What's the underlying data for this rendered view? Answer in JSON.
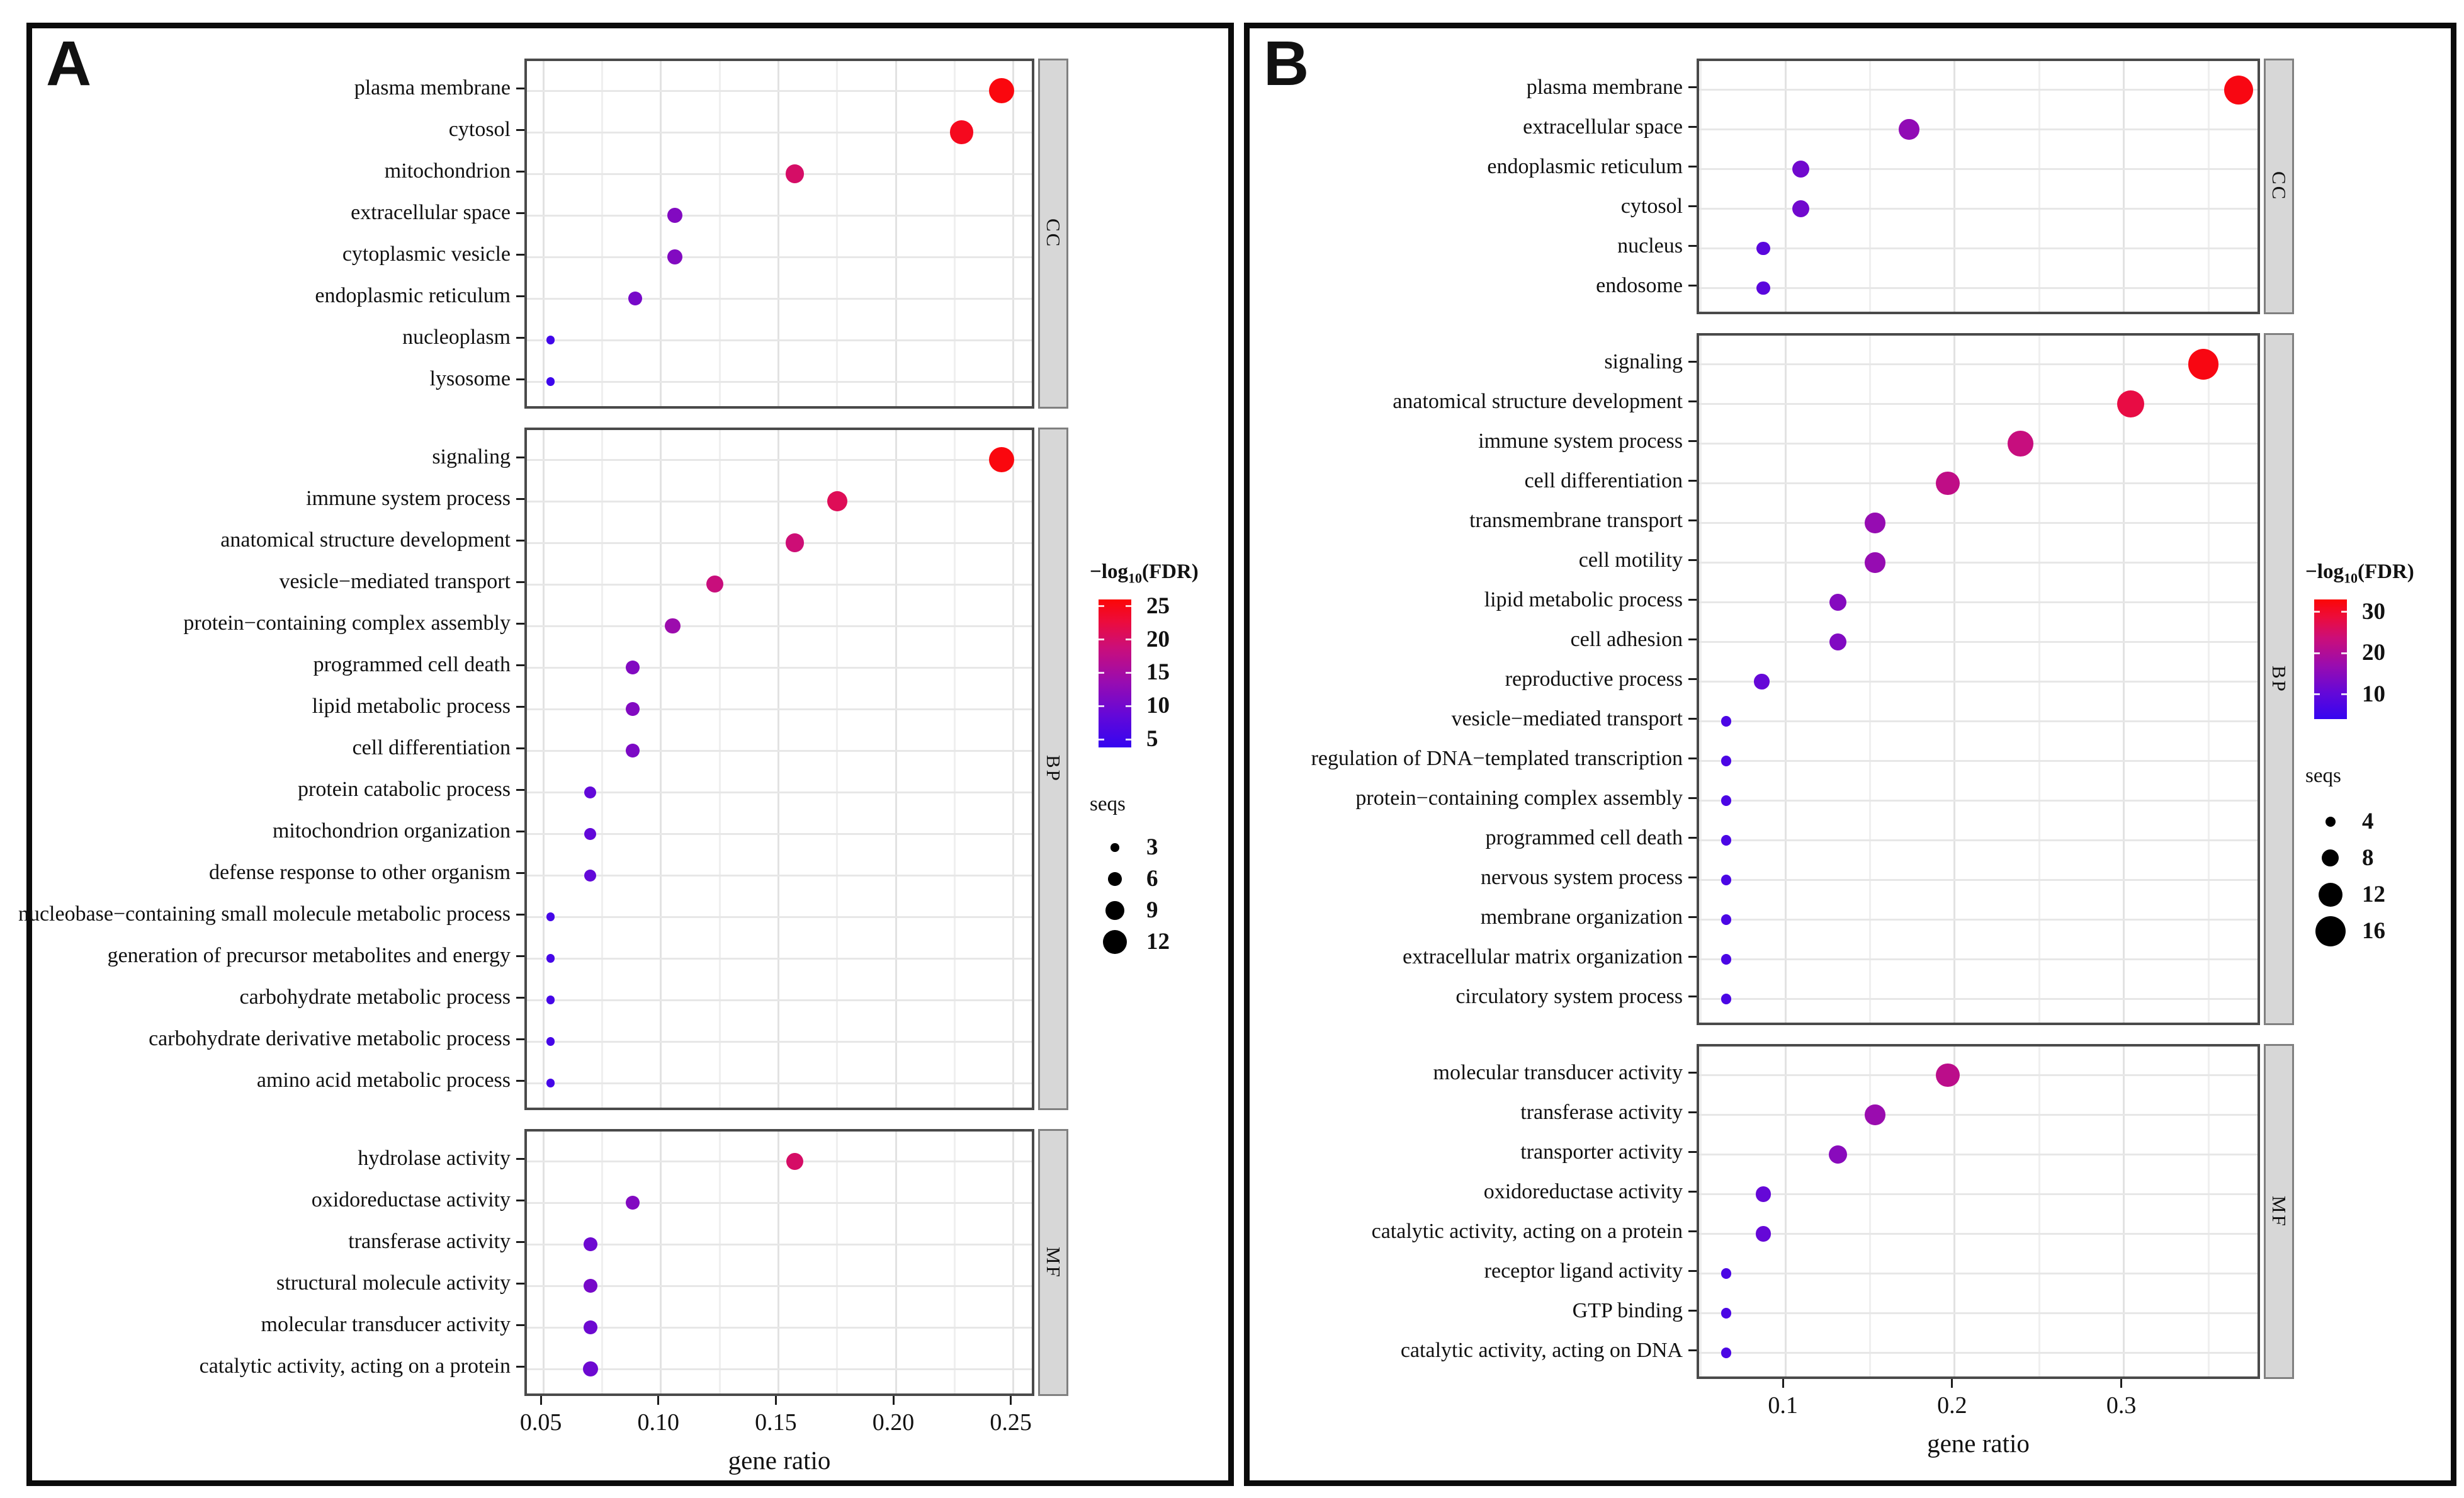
{
  "style": {
    "background": "#ffffff",
    "outer_border": "#0b0b0b",
    "panel_border": "#4a4a4a",
    "grid_major": "#e2e2e2",
    "grid_minor": "#efefef",
    "grid_row": "#e7e7e7",
    "tick_color": "#1c1c1c",
    "text_color": "#111111",
    "strip_bg": "#d7d7d7",
    "strip_border": "#808080",
    "legend_dot_color": "#000000",
    "gradient_stops": [
      [
        0.0,
        "#3505f0"
      ],
      [
        0.22,
        "#6408d8"
      ],
      [
        0.45,
        "#9a0caf"
      ],
      [
        0.68,
        "#cc0e78"
      ],
      [
        0.85,
        "#ec0c3c"
      ],
      [
        1.0,
        "#fc0606"
      ]
    ]
  },
  "chart_data": [
    {
      "type": "scatter",
      "panel_label": "A",
      "xlabel": "gene ratio",
      "x_domain": [
        0.043,
        0.26
      ],
      "x_major_ticks": [
        0.05,
        0.1,
        0.15,
        0.2,
        0.25
      ],
      "x_tick_labels": [
        "0.05",
        "0.10",
        "0.15",
        "0.20",
        "0.25"
      ],
      "x_minor_ticks": [
        0.075,
        0.125,
        0.175,
        0.225
      ],
      "color_domain": [
        3.8,
        26
      ],
      "legend": {
        "color_title": {
          "prefix": "−log",
          "sub": "10",
          "suffix": "(FDR)"
        },
        "color_ticks": [
          25,
          20,
          15,
          10,
          5
        ],
        "size_title": "seqs",
        "size_ticks": [
          3,
          6,
          9,
          12
        ]
      },
      "facets": [
        {
          "label": "CC",
          "rows": [
            {
              "term": "plasma membrane",
              "gene_ratio": 0.245,
              "fdr": 25.5,
              "seqs": 13
            },
            {
              "term": "cytosol",
              "gene_ratio": 0.228,
              "fdr": 24.5,
              "seqs": 12
            },
            {
              "term": "mitochondrion",
              "gene_ratio": 0.157,
              "fdr": 20,
              "seqs": 9
            },
            {
              "term": "extracellular space",
              "gene_ratio": 0.106,
              "fdr": 11.5,
              "seqs": 7
            },
            {
              "term": "cytoplasmic vesicle",
              "gene_ratio": 0.106,
              "fdr": 11.5,
              "seqs": 7
            },
            {
              "term": "endoplasmic reticulum",
              "gene_ratio": 0.089,
              "fdr": 10.5,
              "seqs": 6
            },
            {
              "term": "nucleoplasm",
              "gene_ratio": 0.053,
              "fdr": 5,
              "seqs": 3
            },
            {
              "term": "lysosome",
              "gene_ratio": 0.053,
              "fdr": 4.5,
              "seqs": 3
            }
          ]
        },
        {
          "label": "BP",
          "rows": [
            {
              "term": "signaling",
              "gene_ratio": 0.245,
              "fdr": 25.5,
              "seqs": 13
            },
            {
              "term": "immune system process",
              "gene_ratio": 0.175,
              "fdr": 21,
              "seqs": 10
            },
            {
              "term": "anatomical structure development",
              "gene_ratio": 0.157,
              "fdr": 19,
              "seqs": 9
            },
            {
              "term": "vesicle−mediated transport",
              "gene_ratio": 0.123,
              "fdr": 18.5,
              "seqs": 8
            },
            {
              "term": "protein−containing complex assembly",
              "gene_ratio": 0.105,
              "fdr": 14,
              "seqs": 7
            },
            {
              "term": "programmed cell death",
              "gene_ratio": 0.088,
              "fdr": 11.5,
              "seqs": 6
            },
            {
              "term": "lipid metabolic process",
              "gene_ratio": 0.088,
              "fdr": 11.5,
              "seqs": 6
            },
            {
              "term": "cell differentiation",
              "gene_ratio": 0.088,
              "fdr": 11,
              "seqs": 6
            },
            {
              "term": "protein catabolic process",
              "gene_ratio": 0.07,
              "fdr": 8.5,
              "seqs": 5
            },
            {
              "term": "mitochondrion organization",
              "gene_ratio": 0.07,
              "fdr": 8.5,
              "seqs": 5
            },
            {
              "term": "defense response to other organism",
              "gene_ratio": 0.07,
              "fdr": 8.5,
              "seqs": 5
            },
            {
              "term": "nucleobase−containing small molecule metabolic process",
              "gene_ratio": 0.053,
              "fdr": 5.5,
              "seqs": 3
            },
            {
              "term": "generation of precursor metabolites and energy",
              "gene_ratio": 0.053,
              "fdr": 5.5,
              "seqs": 3
            },
            {
              "term": "carbohydrate metabolic process",
              "gene_ratio": 0.053,
              "fdr": 5.5,
              "seqs": 3
            },
            {
              "term": "carbohydrate derivative metabolic process",
              "gene_ratio": 0.053,
              "fdr": 5.5,
              "seqs": 3
            },
            {
              "term": "amino acid metabolic process",
              "gene_ratio": 0.053,
              "fdr": 5.5,
              "seqs": 3
            }
          ]
        },
        {
          "label": "MF",
          "rows": [
            {
              "term": "hydrolase activity",
              "gene_ratio": 0.157,
              "fdr": 20,
              "seqs": 8
            },
            {
              "term": "oxidoreductase activity",
              "gene_ratio": 0.088,
              "fdr": 11.5,
              "seqs": 6
            },
            {
              "term": "transferase activity",
              "gene_ratio": 0.07,
              "fdr": 9.5,
              "seqs": 6
            },
            {
              "term": "structural molecule activity",
              "gene_ratio": 0.07,
              "fdr": 10.5,
              "seqs": 6
            },
            {
              "term": "molecular transducer activity",
              "gene_ratio": 0.07,
              "fdr": 9.5,
              "seqs": 6
            },
            {
              "term": "catalytic activity, acting on a protein",
              "gene_ratio": 0.07,
              "fdr": 9.5,
              "seqs": 7
            }
          ]
        }
      ]
    },
    {
      "type": "scatter",
      "panel_label": "B",
      "xlabel": "gene ratio",
      "x_domain": [
        0.049,
        0.382
      ],
      "x_major_ticks": [
        0.1,
        0.2,
        0.3
      ],
      "x_tick_labels": [
        "0.1",
        "0.2",
        "0.3"
      ],
      "x_minor_ticks": [
        0.05,
        0.15,
        0.25,
        0.35
      ],
      "color_domain": [
        4,
        33
      ],
      "legend": {
        "color_title": {
          "prefix": "−log",
          "sub": "10",
          "suffix": "(FDR)"
        },
        "color_ticks": [
          30,
          20,
          10
        ],
        "size_title": "seqs",
        "size_ticks": [
          4,
          8,
          12,
          16
        ]
      },
      "facets": [
        {
          "label": "CC",
          "rows": [
            {
              "term": "plasma membrane",
              "gene_ratio": 0.368,
              "fdr": 32,
              "seqs": 15
            },
            {
              "term": "extracellular space",
              "gene_ratio": 0.173,
              "fdr": 16,
              "seqs": 10
            },
            {
              "term": "endoplasmic reticulum",
              "gene_ratio": 0.109,
              "fdr": 12,
              "seqs": 8
            },
            {
              "term": "cytosol",
              "gene_ratio": 0.109,
              "fdr": 12,
              "seqs": 8
            },
            {
              "term": "nucleus",
              "gene_ratio": 0.087,
              "fdr": 9,
              "seqs": 6
            },
            {
              "term": "endosome",
              "gene_ratio": 0.087,
              "fdr": 9,
              "seqs": 6
            }
          ]
        },
        {
          "label": "BP",
          "rows": [
            {
              "term": "signaling",
              "gene_ratio": 0.347,
              "fdr": 32,
              "seqs": 16
            },
            {
              "term": "anatomical structure development",
              "gene_ratio": 0.304,
              "fdr": 28,
              "seqs": 14
            },
            {
              "term": "immune system process",
              "gene_ratio": 0.239,
              "fdr": 23,
              "seqs": 13
            },
            {
              "term": "cell differentiation",
              "gene_ratio": 0.196,
              "fdr": 22,
              "seqs": 12
            },
            {
              "term": "transmembrane transport",
              "gene_ratio": 0.153,
              "fdr": 16.5,
              "seqs": 10
            },
            {
              "term": "cell motility",
              "gene_ratio": 0.153,
              "fdr": 16.5,
              "seqs": 10
            },
            {
              "term": "lipid metabolic process",
              "gene_ratio": 0.131,
              "fdr": 14.5,
              "seqs": 8
            },
            {
              "term": "cell adhesion",
              "gene_ratio": 0.131,
              "fdr": 14,
              "seqs": 8
            },
            {
              "term": "reproductive process",
              "gene_ratio": 0.086,
              "fdr": 10.5,
              "seqs": 7
            },
            {
              "term": "vesicle−mediated transport",
              "gene_ratio": 0.065,
              "fdr": 7,
              "seqs": 4
            },
            {
              "term": "regulation of DNA−templated transcription",
              "gene_ratio": 0.065,
              "fdr": 7,
              "seqs": 4
            },
            {
              "term": "protein−containing complex assembly",
              "gene_ratio": 0.065,
              "fdr": 7,
              "seqs": 4
            },
            {
              "term": "programmed cell death",
              "gene_ratio": 0.065,
              "fdr": 7,
              "seqs": 4
            },
            {
              "term": "nervous system process",
              "gene_ratio": 0.065,
              "fdr": 7,
              "seqs": 4
            },
            {
              "term": "membrane organization",
              "gene_ratio": 0.065,
              "fdr": 7,
              "seqs": 4
            },
            {
              "term": "extracellular matrix organization",
              "gene_ratio": 0.065,
              "fdr": 7,
              "seqs": 4
            },
            {
              "term": "circulatory system process",
              "gene_ratio": 0.065,
              "fdr": 7,
              "seqs": 4
            }
          ]
        },
        {
          "label": "MF",
          "rows": [
            {
              "term": "molecular transducer activity",
              "gene_ratio": 0.196,
              "fdr": 21.5,
              "seqs": 12
            },
            {
              "term": "transferase activity",
              "gene_ratio": 0.153,
              "fdr": 17,
              "seqs": 10
            },
            {
              "term": "transporter activity",
              "gene_ratio": 0.131,
              "fdr": 15,
              "seqs": 9
            },
            {
              "term": "oxidoreductase activity",
              "gene_ratio": 0.087,
              "fdr": 10.5,
              "seqs": 7
            },
            {
              "term": "catalytic activity, acting on a protein",
              "gene_ratio": 0.087,
              "fdr": 10.5,
              "seqs": 7
            },
            {
              "term": "receptor ligand activity",
              "gene_ratio": 0.065,
              "fdr": 7,
              "seqs": 4
            },
            {
              "term": "GTP binding",
              "gene_ratio": 0.065,
              "fdr": 7,
              "seqs": 4
            },
            {
              "term": "catalytic activity, acting on DNA",
              "gene_ratio": 0.065,
              "fdr": 7,
              "seqs": 4
            }
          ]
        }
      ]
    }
  ]
}
